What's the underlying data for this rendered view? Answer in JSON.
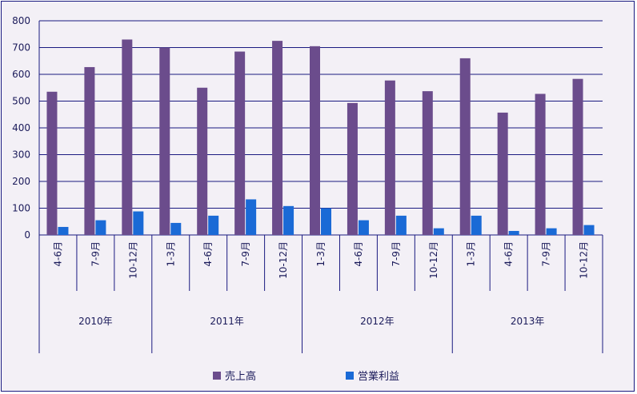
{
  "chart_data": {
    "type": "bar",
    "ylim": [
      0,
      800
    ],
    "yticks": [
      0,
      100,
      200,
      300,
      400,
      500,
      600,
      700,
      800
    ],
    "grid": true,
    "legend_position": "bottom",
    "categories": [
      "4-6月",
      "7-9月",
      "10-12月",
      "1-3月",
      "4-6月",
      "7-9月",
      "10-12月",
      "1-3月",
      "4-6月",
      "7-9月",
      "10-12月",
      "1-3月",
      "4-6月",
      "7-9月",
      "10-12月"
    ],
    "groups": [
      {
        "label": "2010年",
        "count": 3
      },
      {
        "label": "2011年",
        "count": 4
      },
      {
        "label": "2012年",
        "count": 4
      },
      {
        "label": "2013年",
        "count": 4
      }
    ],
    "series": [
      {
        "name": "売上高",
        "color": "#6b4c8c",
        "values": [
          535,
          627,
          730,
          700,
          550,
          685,
          725,
          705,
          493,
          577,
          537,
          660,
          457,
          527,
          583
        ]
      },
      {
        "name": "営業利益",
        "color": "#1a6ad6",
        "values": [
          30,
          55,
          88,
          45,
          72,
          133,
          108,
          100,
          55,
          72,
          25,
          72,
          15,
          25,
          37
        ]
      }
    ]
  }
}
